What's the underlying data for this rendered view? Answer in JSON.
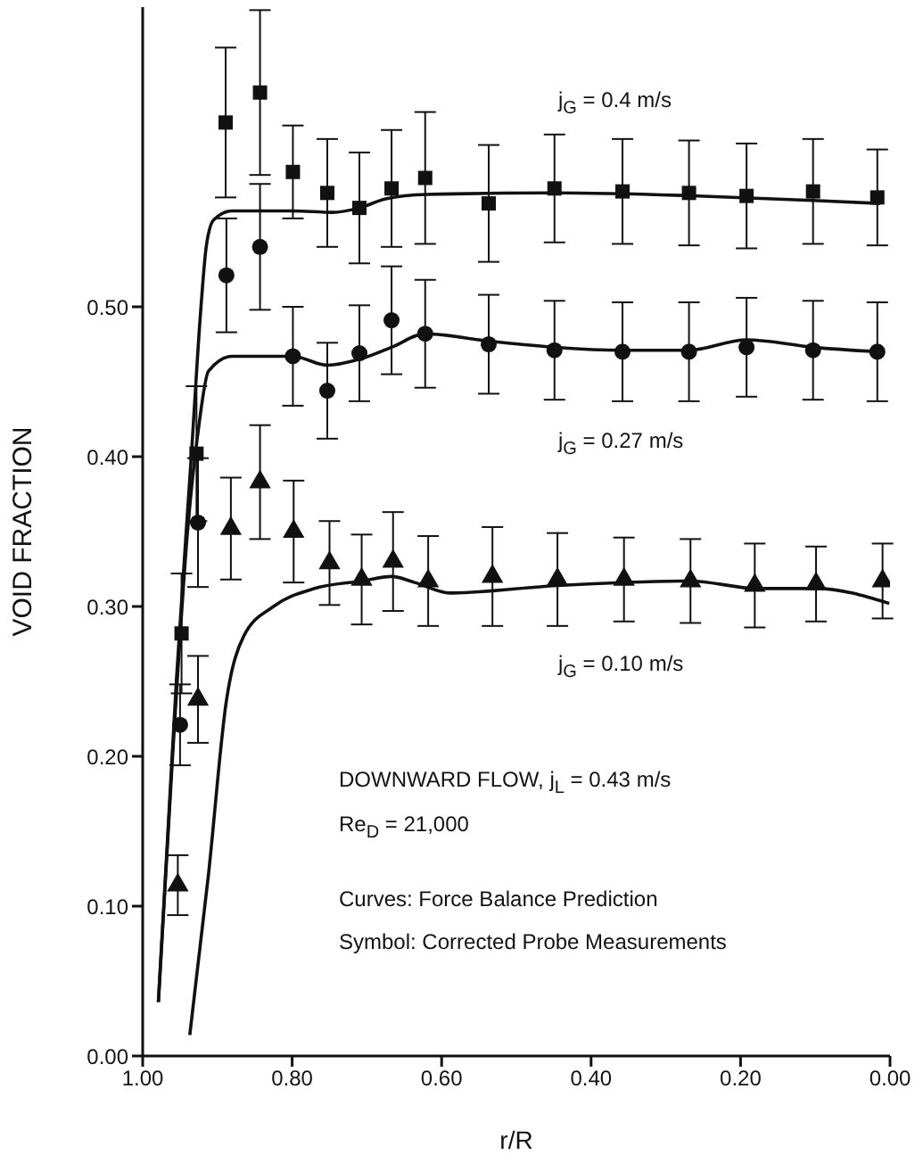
{
  "chart_data": {
    "type": "scatter",
    "xlabel": "r/R",
    "ylabel": "VOID FRACTION",
    "xlim": [
      1.0,
      0.0
    ],
    "xticks": [
      {
        "value": 1.0,
        "label": "1.00"
      },
      {
        "value": 0.8,
        "label": "0.80"
      },
      {
        "value": 0.6,
        "label": "0.60"
      },
      {
        "value": 0.4,
        "label": "0.40"
      },
      {
        "value": 0.2,
        "label": "0.20"
      },
      {
        "value": 0.0,
        "label": "0.00"
      }
    ],
    "ylim": [
      0,
      0.7
    ],
    "yticks": [
      {
        "value": 0,
        "label": "0.00"
      },
      {
        "value": 0.1,
        "label": "0.10"
      },
      {
        "value": 0.2,
        "label": "0.20"
      },
      {
        "value": 0.3,
        "label": "0.30"
      },
      {
        "value": 0.4,
        "label": "0.40"
      },
      {
        "value": 0.5,
        "label": "0.50"
      }
    ],
    "grid": false,
    "legend": false,
    "series": [
      {
        "marker": "square",
        "color": "#111111",
        "x": [
          0.948,
          0.928,
          0.889,
          0.843,
          0.799,
          0.753,
          0.71,
          0.667,
          0.622,
          0.537,
          0.449,
          0.358,
          0.269,
          0.192,
          0.103,
          0.017
        ],
        "values": [
          0.282,
          0.402,
          0.623,
          0.643,
          0.59,
          0.576,
          0.566,
          0.579,
          0.586,
          0.569,
          0.579,
          0.577,
          0.576,
          0.574,
          0.577,
          0.573
        ],
        "errors": [
          0.04,
          0.045,
          0.05,
          0.055,
          0.031,
          0.036,
          0.037,
          0.039,
          0.044,
          0.039,
          0.036,
          0.035,
          0.035,
          0.035,
          0.035,
          0.032
        ]
      },
      {
        "marker": "circle",
        "color": "#111111",
        "x": [
          0.95,
          0.926,
          0.888,
          0.843,
          0.799,
          0.753,
          0.71,
          0.667,
          0.622,
          0.537,
          0.449,
          0.358,
          0.269,
          0.192,
          0.103,
          0.017
        ],
        "values": [
          0.221,
          0.356,
          0.521,
          0.54,
          0.467,
          0.444,
          0.469,
          0.491,
          0.482,
          0.475,
          0.471,
          0.47,
          0.47,
          0.473,
          0.471,
          0.47
        ],
        "errors": [
          0.027,
          0.043,
          0.038,
          0.042,
          0.033,
          0.032,
          0.032,
          0.036,
          0.036,
          0.033,
          0.033,
          0.033,
          0.033,
          0.033,
          0.033,
          0.033
        ]
      },
      {
        "marker": "triangle",
        "color": "#111111",
        "x": [
          0.953,
          0.926,
          0.882,
          0.843,
          0.798,
          0.75,
          0.707,
          0.665,
          0.618,
          0.532,
          0.445,
          0.356,
          0.267,
          0.181,
          0.099,
          0.01
        ],
        "values": [
          0.114,
          0.238,
          0.352,
          0.383,
          0.35,
          0.329,
          0.318,
          0.33,
          0.317,
          0.32,
          0.318,
          0.318,
          0.317,
          0.314,
          0.315,
          0.317
        ],
        "errors": [
          0.02,
          0.029,
          0.034,
          0.038,
          0.034,
          0.028,
          0.03,
          0.033,
          0.03,
          0.033,
          0.031,
          0.028,
          0.028,
          0.028,
          0.025,
          0.025
        ]
      },
      {
        "type": "line",
        "marker": "none",
        "color": "#111111",
        "x": [
          0.979,
          0.955,
          0.935,
          0.922,
          0.915,
          0.905,
          0.88,
          0.799,
          0.746,
          0.71,
          0.675,
          0.62,
          0.449,
          0.257,
          0.103,
          0.013
        ],
        "values": [
          0.036,
          0.25,
          0.4,
          0.5,
          0.54,
          0.558,
          0.564,
          0.564,
          0.563,
          0.566,
          0.572,
          0.575,
          0.576,
          0.574,
          0.571,
          0.569
        ]
      },
      {
        "type": "line",
        "marker": "none",
        "color": "#111111",
        "x": [
          0.979,
          0.96,
          0.94,
          0.925,
          0.912,
          0.88,
          0.799,
          0.753,
          0.71,
          0.667,
          0.622,
          0.535,
          0.358,
          0.269,
          0.192,
          0.103,
          0.017
        ],
        "values": [
          0.036,
          0.2,
          0.35,
          0.42,
          0.457,
          0.467,
          0.467,
          0.461,
          0.465,
          0.473,
          0.482,
          0.477,
          0.471,
          0.471,
          0.478,
          0.473,
          0.47
        ]
      },
      {
        "type": "line",
        "marker": "none",
        "color": "#111111",
        "x": [
          0.937,
          0.912,
          0.888,
          0.865,
          0.825,
          0.77,
          0.707,
          0.667,
          0.636,
          0.589,
          0.445,
          0.267,
          0.178,
          0.099,
          0.001
        ],
        "values": [
          0.014,
          0.121,
          0.237,
          0.28,
          0.3,
          0.312,
          0.317,
          0.32,
          0.316,
          0.309,
          0.314,
          0.317,
          0.312,
          0.312,
          0.302
        ]
      }
    ],
    "annotations": [
      "j$_{G}$ = 0.4 m/s",
      "j$_{G}$ = 0.27 m/s",
      "j$_{G}$ = 0.10 m/s",
      "DOWNWARD FLOW,  j$_{L}$ = 0.43 m/s",
      "Re$_{D}$ = 21,000",
      "Curves:  Force Balance Prediction",
      "Symbol:  Corrected Probe Measurements"
    ]
  }
}
